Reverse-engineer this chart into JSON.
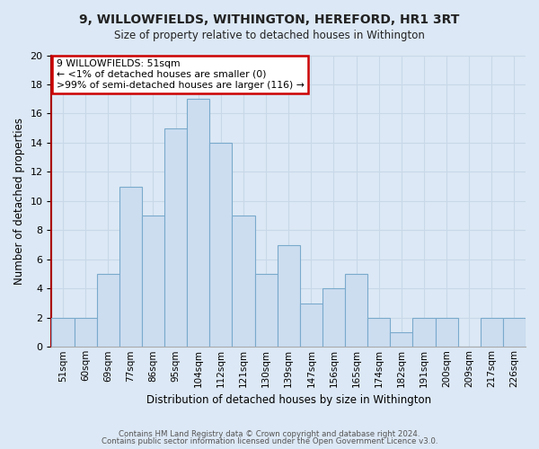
{
  "title": "9, WILLOWFIELDS, WITHINGTON, HEREFORD, HR1 3RT",
  "subtitle": "Size of property relative to detached houses in Withington",
  "xlabel": "Distribution of detached houses by size in Withington",
  "ylabel": "Number of detached properties",
  "bar_labels": [
    "51sqm",
    "60sqm",
    "69sqm",
    "77sqm",
    "86sqm",
    "95sqm",
    "104sqm",
    "112sqm",
    "121sqm",
    "130sqm",
    "139sqm",
    "147sqm",
    "156sqm",
    "165sqm",
    "174sqm",
    "182sqm",
    "191sqm",
    "200sqm",
    "209sqm",
    "217sqm",
    "226sqm"
  ],
  "bar_values": [
    2,
    2,
    5,
    11,
    9,
    15,
    17,
    14,
    9,
    5,
    7,
    3,
    4,
    5,
    2,
    1,
    2,
    2,
    0,
    2,
    2
  ],
  "bar_color": "#ccddf0",
  "bar_edge_color": "#7aaacc",
  "ylim": [
    0,
    20
  ],
  "yticks": [
    0,
    2,
    4,
    6,
    8,
    10,
    12,
    14,
    16,
    18,
    20
  ],
  "grid_color": "#c8d8e8",
  "plot_bg_color": "#dce8f5",
  "fig_bg_color": "#dce8f5",
  "left_spine_color": "#aa0000",
  "annotation_box_text": "9 WILLOWFIELDS: 51sqm\n← <1% of detached houses are smaller (0)\n>99% of semi-detached houses are larger (116) →",
  "annotation_box_color": "#ffffff",
  "annotation_box_edge_color": "#cc0000",
  "footer_line1": "Contains HM Land Registry data © Crown copyright and database right 2024.",
  "footer_line2": "Contains public sector information licensed under the Open Government Licence v3.0.",
  "title_fontsize": 10,
  "subtitle_fontsize": 8.5,
  "ylabel_fontsize": 8.5,
  "xlabel_fontsize": 8.5,
  "tick_fontsize": 8,
  "xtick_fontsize": 7.5,
  "ann_fontsize": 7.8,
  "footer_fontsize": 6.2
}
